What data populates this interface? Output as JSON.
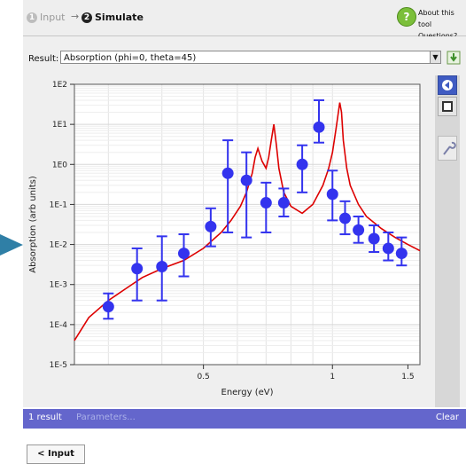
{
  "header": {
    "steps": [
      {
        "number": "1",
        "label": "Input"
      },
      {
        "number": "2",
        "label": "Simulate"
      }
    ],
    "arrow": "→",
    "about_line1": "About this tool",
    "about_line2": "Questions?",
    "help_symbol": "?"
  },
  "result": {
    "label": "Result:",
    "selected": "Absorption (phi=0, theta=45)"
  },
  "status": {
    "count": "1 result",
    "parameters": "Parameters...",
    "clear": "Clear"
  },
  "footer": {
    "input_button": "< Input"
  },
  "chart_data": {
    "type": "scatter",
    "title": "",
    "xlabel": "Energy (eV)",
    "ylabel": "Absorption (arb units)",
    "x_scale": "log",
    "y_scale": "log",
    "xlim": [
      0.25,
      1.6
    ],
    "ylim": [
      1e-05,
      100
    ],
    "x_ticks": [
      0.5,
      1,
      1.5
    ],
    "y_ticks": [
      1e-05,
      0.0001,
      0.001,
      0.01,
      0.1,
      1,
      10,
      100
    ],
    "y_tick_labels": [
      "1E-5",
      "1E-4",
      "1E-3",
      "1E-2",
      "1E-1",
      "1E0",
      "1E1",
      "1E2"
    ],
    "grid": true,
    "colors": {
      "curve": "#dd0000",
      "points": "#3333ee",
      "error_bars": "#3333ee"
    },
    "series": [
      {
        "kind": "curve",
        "x": [
          0.25,
          0.27,
          0.3,
          0.33,
          0.36,
          0.4,
          0.45,
          0.5,
          0.55,
          0.58,
          0.61,
          0.63,
          0.65,
          0.66,
          0.67,
          0.685,
          0.7,
          0.71,
          0.72,
          0.73,
          0.74,
          0.75,
          0.77,
          0.8,
          0.85,
          0.9,
          0.95,
          0.98,
          1.0,
          1.02,
          1.04,
          1.05,
          1.06,
          1.08,
          1.1,
          1.15,
          1.2,
          1.3,
          1.4,
          1.5,
          1.6
        ],
        "y": [
          4e-05,
          0.00015,
          0.0004,
          0.0008,
          0.0015,
          0.0025,
          0.004,
          0.008,
          0.02,
          0.04,
          0.09,
          0.2,
          0.6,
          1.5,
          2.5,
          1.2,
          0.8,
          1.5,
          4.0,
          10.0,
          3.0,
          0.8,
          0.2,
          0.09,
          0.06,
          0.1,
          0.3,
          0.8,
          2.0,
          8.0,
          35.0,
          20.0,
          4.0,
          0.8,
          0.3,
          0.1,
          0.05,
          0.025,
          0.015,
          0.01,
          0.007
        ]
      },
      {
        "kind": "points",
        "x": [
          0.3,
          0.35,
          0.4,
          0.45,
          0.52,
          0.57,
          0.63,
          0.7,
          0.77,
          0.85,
          0.93,
          1.0,
          1.07,
          1.15,
          1.25,
          1.35,
          1.45
        ],
        "y": [
          0.00028,
          0.0025,
          0.0028,
          0.006,
          0.028,
          0.6,
          0.4,
          0.11,
          0.11,
          1.0,
          8.5,
          0.18,
          0.045,
          0.023,
          0.014,
          0.008,
          0.006
        ],
        "y_low": [
          0.00014,
          0.0004,
          0.0004,
          0.0016,
          0.009,
          0.02,
          0.015,
          0.02,
          0.05,
          0.2,
          3.5,
          0.04,
          0.018,
          0.011,
          0.0065,
          0.004,
          0.003
        ],
        "y_high": [
          0.0006,
          0.008,
          0.016,
          0.018,
          0.08,
          4.0,
          2.0,
          0.35,
          0.25,
          3.0,
          40.0,
          0.7,
          0.12,
          0.05,
          0.03,
          0.02,
          0.015
        ]
      }
    ]
  }
}
